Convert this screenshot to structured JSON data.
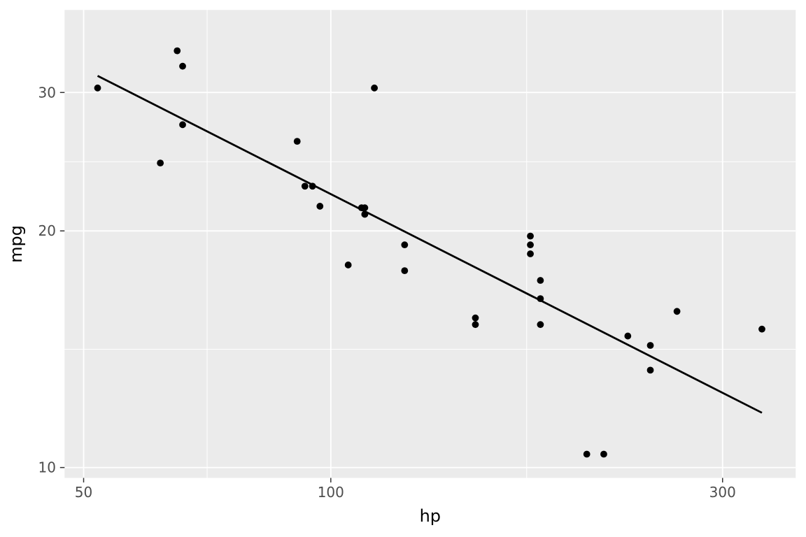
{
  "chart_data": {
    "type": "scatter",
    "title": "",
    "xlabel": "hp",
    "ylabel": "mpg",
    "x_scale": "log10",
    "y_scale": "log10",
    "x_domain": [
      47.4,
      368.3
    ],
    "y_domain": [
      9.7,
      38.2
    ],
    "x_ticks": [
      50,
      100,
      300
    ],
    "x_tick_labels": [
      "50",
      "100",
      "300"
    ],
    "y_ticks": [
      10,
      20,
      30
    ],
    "y_tick_labels": [
      "10",
      "20",
      "30"
    ],
    "x_minor_breaks": [
      70.7,
      173.2
    ],
    "y_minor_breaks": [
      14.14,
      24.49
    ],
    "grid": true,
    "legend": "none",
    "points": [
      [
        110,
        21.0
      ],
      [
        110,
        21.0
      ],
      [
        93,
        22.8
      ],
      [
        110,
        21.4
      ],
      [
        175,
        18.7
      ],
      [
        105,
        18.1
      ],
      [
        245,
        14.3
      ],
      [
        62,
        24.4
      ],
      [
        95,
        22.8
      ],
      [
        123,
        19.2
      ],
      [
        123,
        17.8
      ],
      [
        180,
        16.4
      ],
      [
        180,
        17.3
      ],
      [
        180,
        15.2
      ],
      [
        205,
        10.4
      ],
      [
        215,
        10.4
      ],
      [
        230,
        14.7
      ],
      [
        66,
        32.4
      ],
      [
        52,
        30.4
      ],
      [
        65,
        33.9
      ],
      [
        97,
        21.5
      ],
      [
        150,
        15.5
      ],
      [
        150,
        15.2
      ],
      [
        245,
        13.3
      ],
      [
        175,
        19.2
      ],
      [
        66,
        27.3
      ],
      [
        91,
        26.0
      ],
      [
        113,
        30.4
      ],
      [
        264,
        15.8
      ],
      [
        175,
        19.7
      ],
      [
        335,
        15.0
      ],
      [
        109,
        21.4
      ]
    ],
    "smooth_line": {
      "method": "lm (log-log)",
      "x_start": 52,
      "y_start": 31.5,
      "x_end": 335,
      "y_end": 11.74
    },
    "style": {
      "panel_background": "#EBEBEB",
      "plot_background": "#FFFFFF",
      "grid_color": "#FFFFFF",
      "point_color": "#000000",
      "line_color": "#000000",
      "tick_label_color": "#4D4D4D",
      "tick_mark_color": "#333333",
      "axis_title_color": "#000000"
    }
  }
}
